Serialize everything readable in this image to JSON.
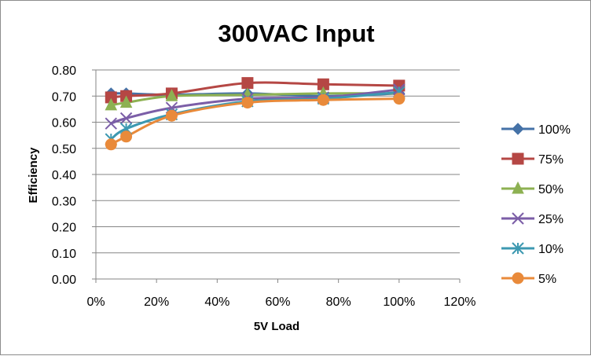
{
  "chart_data": {
    "type": "line",
    "title": "300VAC Input",
    "xlabel": "5V Load",
    "ylabel": "Efficiency",
    "xlim": [
      0,
      120
    ],
    "ylim": [
      0,
      0.8
    ],
    "x_ticks": [
      "0%",
      "20%",
      "40%",
      "60%",
      "80%",
      "100%",
      "120%"
    ],
    "x_tick_values": [
      0,
      20,
      40,
      60,
      80,
      100,
      120
    ],
    "y_ticks": [
      "0.00",
      "0.10",
      "0.20",
      "0.30",
      "0.40",
      "0.50",
      "0.60",
      "0.70",
      "0.80"
    ],
    "y_tick_values": [
      0,
      0.1,
      0.2,
      0.3,
      0.4,
      0.5,
      0.6,
      0.7,
      0.8
    ],
    "grid": "horizontal",
    "legend_position": "right",
    "x": [
      5,
      10,
      25,
      50,
      75,
      100
    ],
    "series": [
      {
        "name": "100%",
        "marker": "diamond",
        "color": "#4572a7",
        "values": [
          0.71,
          0.71,
          0.705,
          0.71,
          0.7,
          0.71
        ]
      },
      {
        "name": "75%",
        "marker": "square",
        "color": "#b54744",
        "values": [
          0.695,
          0.7,
          0.71,
          0.75,
          0.745,
          0.74
        ]
      },
      {
        "name": "50%",
        "marker": "triangle",
        "color": "#8db152",
        "values": [
          0.665,
          0.675,
          0.7,
          0.705,
          0.71,
          0.71
        ]
      },
      {
        "name": "25%",
        "marker": "x",
        "color": "#7b5ea7",
        "values": [
          0.595,
          0.615,
          0.655,
          0.69,
          0.695,
          0.725
        ]
      },
      {
        "name": "10%",
        "marker": "star",
        "color": "#3d99b1",
        "values": [
          0.535,
          0.575,
          0.63,
          0.68,
          0.69,
          0.715
        ]
      },
      {
        "name": "5%",
        "marker": "circle",
        "color": "#e98a3a",
        "values": [
          0.515,
          0.545,
          0.625,
          0.675,
          0.685,
          0.69
        ]
      }
    ]
  }
}
